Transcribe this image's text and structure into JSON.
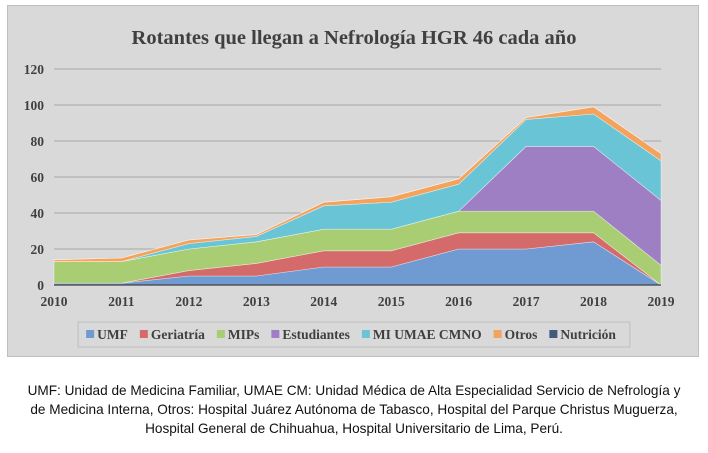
{
  "chart_data": {
    "type": "area",
    "stacked": true,
    "title": "Rotantes que llegan a Nefrología HGR 46 cada año",
    "xlabel": "",
    "ylabel": "",
    "ylim": [
      0,
      120
    ],
    "yticks": [
      "0",
      "20",
      "40",
      "60",
      "80",
      "100",
      "120"
    ],
    "categories": [
      "2010",
      "2011",
      "2012",
      "2013",
      "2014",
      "2015",
      "2016",
      "2017",
      "2018",
      "2019"
    ],
    "grid": true,
    "legend_position": "bottom",
    "series": [
      {
        "name": "UMF",
        "color": "#6f9ad2",
        "values": [
          1,
          1,
          5,
          5,
          10,
          10,
          20,
          20,
          24,
          0
        ]
      },
      {
        "name": "Geriatría",
        "color": "#d46a6a",
        "values": [
          0,
          0,
          3,
          7,
          9,
          9,
          9,
          9,
          5,
          0
        ]
      },
      {
        "name": "MIPs",
        "color": "#a8cd72",
        "values": [
          12,
          12,
          12,
          12,
          12,
          12,
          12,
          12,
          12,
          11
        ]
      },
      {
        "name": "Estudiantes",
        "color": "#9e7fc4",
        "values": [
          0,
          0,
          0,
          0,
          0,
          0,
          0,
          36,
          36,
          36
        ]
      },
      {
        "name": "MI UMAE CMNO",
        "color": "#69c4d6",
        "values": [
          0,
          0,
          3,
          3,
          13,
          15,
          15,
          15,
          18,
          22
        ]
      },
      {
        "name": "Otros",
        "color": "#f4a35c",
        "values": [
          1,
          2,
          2,
          1,
          2,
          3,
          3,
          1,
          4,
          4
        ]
      },
      {
        "name": "Nutrición",
        "color": "#3f5a7c",
        "values": [
          0,
          0,
          0,
          0,
          0,
          0,
          0,
          0,
          0,
          0
        ]
      }
    ]
  },
  "caption": {
    "line1": "UMF: Unidad de Medicina Familiar, UMAE CM: Unidad Médica de Alta Especialidad Servicio de Nefrología y",
    "line2": "de Medicina Interna, Otros: Hospital Juárez Autónoma de Tabasco, Hospital del Parque Christus Muguerza,",
    "line3": "Hospital General de Chihuahua, Hospital Universitario de Lima, Perú."
  }
}
